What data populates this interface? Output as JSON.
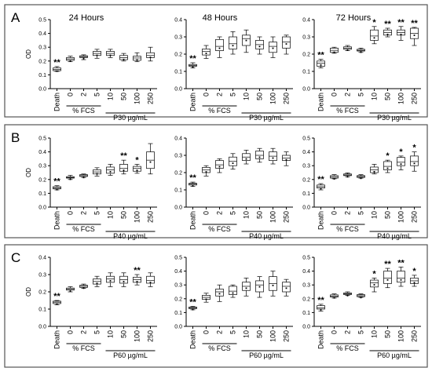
{
  "chart_data": {
    "type": "box",
    "column_titles": [
      "24 Hours",
      "48 Hours",
      "72 Hours"
    ],
    "ylabel": "OD",
    "categories": [
      "Death",
      "0",
      "2",
      "5",
      "10",
      "50",
      "100",
      "250"
    ],
    "group_labels": {
      "fcs": "% FCS"
    },
    "panels": [
      {
        "label": "A",
        "treatment": "P30 µg/mL",
        "charts": [
          {
            "ylim": [
              0,
              0.5
            ],
            "yticks": [
              "0.0",
              "0.1",
              "0.2",
              "0.3",
              "0.4",
              "0.5"
            ],
            "boxes": [
              [
                0.125,
                0.13,
                0.14,
                0.15,
                0.16
              ],
              [
                0.195,
                0.205,
                0.215,
                0.225,
                0.235
              ],
              [
                0.21,
                0.225,
                0.232,
                0.238,
                0.245
              ],
              [
                0.22,
                0.24,
                0.255,
                0.27,
                0.285
              ],
              [
                0.225,
                0.24,
                0.255,
                0.27,
                0.285
              ],
              [
                0.2,
                0.21,
                0.225,
                0.24,
                0.255
              ],
              [
                0.195,
                0.205,
                0.222,
                0.235,
                0.26
              ],
              [
                0.2,
                0.225,
                0.24,
                0.26,
                0.3
              ]
            ],
            "sig": [
              "**",
              "",
              "",
              "",
              "",
              "",
              "",
              ""
            ]
          },
          {
            "ylim": [
              0,
              0.4
            ],
            "yticks": [
              "0.0",
              "0.1",
              "0.2",
              "0.3",
              "0.4"
            ],
            "boxes": [
              [
                0.12,
                0.13,
                0.135,
                0.14,
                0.15
              ],
              [
                0.175,
                0.195,
                0.215,
                0.23,
                0.25
              ],
              [
                0.18,
                0.22,
                0.245,
                0.285,
                0.3
              ],
              [
                0.2,
                0.23,
                0.26,
                0.3,
                0.33
              ],
              [
                0.21,
                0.25,
                0.29,
                0.31,
                0.34
              ],
              [
                0.2,
                0.23,
                0.255,
                0.28,
                0.3
              ],
              [
                0.18,
                0.21,
                0.245,
                0.27,
                0.3
              ],
              [
                0.2,
                0.235,
                0.27,
                0.3,
                0.31
              ]
            ],
            "sig": [
              "**",
              "",
              "",
              "",
              "",
              "",
              "",
              ""
            ]
          },
          {
            "ylim": [
              0,
              0.4
            ],
            "yticks": [
              "0.0",
              "0.1",
              "0.2",
              "0.3",
              "0.4"
            ],
            "boxes": [
              [
                0.12,
                0.13,
                0.148,
                0.16,
                0.17
              ],
              [
                0.205,
                0.21,
                0.222,
                0.235,
                0.24
              ],
              [
                0.22,
                0.228,
                0.235,
                0.242,
                0.25
              ],
              [
                0.21,
                0.218,
                0.222,
                0.228,
                0.235
              ],
              [
                0.26,
                0.28,
                0.305,
                0.34,
                0.36
              ],
              [
                0.3,
                0.31,
                0.325,
                0.34,
                0.35
              ],
              [
                0.28,
                0.31,
                0.325,
                0.34,
                0.36
              ],
              [
                0.25,
                0.29,
                0.32,
                0.35,
                0.355
              ]
            ],
            "sig": [
              "**",
              "",
              "",
              "",
              "*",
              "**",
              "**",
              "**"
            ]
          }
        ]
      },
      {
        "label": "B",
        "treatment": "P40 µg/mL",
        "charts": [
          {
            "ylim": [
              0,
              0.5
            ],
            "yticks": [
              "0.0",
              "0.1",
              "0.2",
              "0.3",
              "0.4",
              "0.5"
            ],
            "boxes": [
              [
                0.125,
                0.132,
                0.14,
                0.148,
                0.155
              ],
              [
                0.2,
                0.21,
                0.215,
                0.22,
                0.23
              ],
              [
                0.215,
                0.222,
                0.228,
                0.235,
                0.24
              ],
              [
                0.225,
                0.24,
                0.255,
                0.27,
                0.285
              ],
              [
                0.23,
                0.245,
                0.27,
                0.29,
                0.31
              ],
              [
                0.24,
                0.26,
                0.28,
                0.31,
                0.34
              ],
              [
                0.245,
                0.26,
                0.28,
                0.295,
                0.31
              ],
              [
                0.24,
                0.28,
                0.34,
                0.4,
                0.46
              ]
            ],
            "sig": [
              "**",
              "",
              "",
              "",
              "",
              "**",
              "*",
              ""
            ]
          },
          {
            "ylim": [
              0,
              0.4
            ],
            "yticks": [
              "0.0",
              "0.1",
              "0.2",
              "0.3",
              "0.4"
            ],
            "boxes": [
              [
                0.12,
                0.128,
                0.133,
                0.138,
                0.145
              ],
              [
                0.18,
                0.2,
                0.215,
                0.23,
                0.24
              ],
              [
                0.2,
                0.225,
                0.245,
                0.27,
                0.28
              ],
              [
                0.22,
                0.24,
                0.265,
                0.29,
                0.31
              ],
              [
                0.25,
                0.27,
                0.29,
                0.31,
                0.33
              ],
              [
                0.26,
                0.28,
                0.3,
                0.325,
                0.34
              ],
              [
                0.25,
                0.27,
                0.295,
                0.32,
                0.34
              ],
              [
                0.24,
                0.27,
                0.285,
                0.3,
                0.32
              ]
            ],
            "sig": [
              "**",
              "",
              "",
              "",
              "",
              "",
              "",
              ""
            ]
          },
          {
            "ylim": [
              0,
              0.5
            ],
            "yticks": [
              "0.0",
              "0.1",
              "0.2",
              "0.3",
              "0.4",
              "0.5"
            ],
            "boxes": [
              [
                0.125,
                0.138,
                0.148,
                0.16,
                0.17
              ],
              [
                0.205,
                0.21,
                0.218,
                0.228,
                0.235
              ],
              [
                0.22,
                0.228,
                0.233,
                0.24,
                0.248
              ],
              [
                0.21,
                0.215,
                0.222,
                0.228,
                0.235
              ],
              [
                0.24,
                0.25,
                0.27,
                0.29,
                0.31
              ],
              [
                0.25,
                0.27,
                0.295,
                0.33,
                0.34
              ],
              [
                0.27,
                0.3,
                0.325,
                0.36,
                0.37
              ],
              [
                0.26,
                0.3,
                0.33,
                0.37,
                0.4
              ]
            ],
            "sig": [
              "**",
              "",
              "",
              "",
              "",
              "*",
              "*",
              "*"
            ]
          }
        ]
      },
      {
        "label": "C",
        "treatment": "P60 µg/mL",
        "charts": [
          {
            "ylim": [
              0,
              0.4
            ],
            "yticks": [
              "0.0",
              "0.1",
              "0.2",
              "0.3",
              "0.4"
            ],
            "boxes": [
              [
                0.125,
                0.132,
                0.14,
                0.146,
                0.15
              ],
              [
                0.2,
                0.21,
                0.215,
                0.222,
                0.23
              ],
              [
                0.22,
                0.226,
                0.232,
                0.238,
                0.245
              ],
              [
                0.23,
                0.245,
                0.26,
                0.275,
                0.29
              ],
              [
                0.23,
                0.255,
                0.275,
                0.29,
                0.31
              ],
              [
                0.23,
                0.25,
                0.27,
                0.29,
                0.31
              ],
              [
                0.24,
                0.255,
                0.27,
                0.285,
                0.3
              ],
              [
                0.23,
                0.25,
                0.265,
                0.29,
                0.31
              ]
            ],
            "sig": [
              "**",
              "",
              "",
              "",
              "",
              "",
              "**",
              ""
            ]
          },
          {
            "ylim": [
              0,
              0.5
            ],
            "yticks": [
              "0.0",
              "0.1",
              "0.2",
              "0.3",
              "0.4",
              "0.5"
            ],
            "boxes": [
              [
                0.12,
                0.128,
                0.135,
                0.14,
                0.145
              ],
              [
                0.175,
                0.195,
                0.21,
                0.225,
                0.24
              ],
              [
                0.18,
                0.22,
                0.25,
                0.27,
                0.3
              ],
              [
                0.21,
                0.23,
                0.255,
                0.29,
                0.3
              ],
              [
                0.22,
                0.26,
                0.29,
                0.32,
                0.35
              ],
              [
                0.21,
                0.25,
                0.3,
                0.33,
                0.36
              ],
              [
                0.22,
                0.26,
                0.31,
                0.36,
                0.4
              ],
              [
                0.22,
                0.25,
                0.29,
                0.32,
                0.34
              ]
            ],
            "sig": [
              "**",
              "",
              "",
              "",
              "",
              "",
              "",
              ""
            ]
          },
          {
            "ylim": [
              0,
              0.5
            ],
            "yticks": [
              "0.0",
              "0.1",
              "0.2",
              "0.3",
              "0.4",
              "0.5"
            ],
            "boxes": [
              [
                0.11,
                0.125,
                0.135,
                0.15,
                0.16
              ],
              [
                0.205,
                0.212,
                0.22,
                0.228,
                0.235
              ],
              [
                0.225,
                0.23,
                0.236,
                0.242,
                0.25
              ],
              [
                0.21,
                0.215,
                0.222,
                0.23,
                0.235
              ],
              [
                0.25,
                0.285,
                0.315,
                0.335,
                0.35
              ],
              [
                0.28,
                0.31,
                0.35,
                0.4,
                0.42
              ],
              [
                0.29,
                0.32,
                0.35,
                0.4,
                0.43
              ],
              [
                0.29,
                0.31,
                0.33,
                0.35,
                0.37
              ]
            ],
            "sig": [
              "**",
              "",
              "",
              "",
              "*",
              "**",
              "**",
              "*"
            ]
          }
        ]
      }
    ]
  }
}
